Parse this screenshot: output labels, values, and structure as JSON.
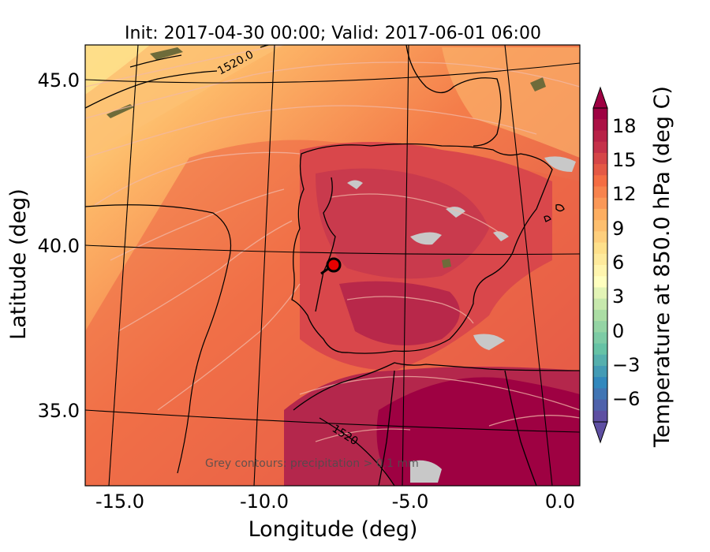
{
  "title": "Init: 2017-04-30 00:00; Valid: 2017-06-01 06:00",
  "axes": {
    "xlabel": "Longitude (deg)",
    "ylabel": "Latitude (deg)",
    "x_ticks": [
      "-15.0",
      "-10.0",
      "-5.0",
      "0.0"
    ],
    "y_ticks": [
      "45.0",
      "40.0",
      "35.0"
    ]
  },
  "colorbar": {
    "label": "Temperature at 850.0 hPa (deg C)",
    "ticks": [
      "18",
      "15",
      "12",
      "9",
      "6",
      "3",
      "0",
      "−3",
      "−6"
    ],
    "range": [
      -8,
      20
    ],
    "extend": "both"
  },
  "contour_labels": [
    "1520.0",
    "1520"
  ],
  "annotation": "Grey contours: precipitation > 0.1 mm",
  "marker": {
    "color": "#e60000",
    "outline": "#000000"
  },
  "colors": {
    "warm_max": "#9e0142",
    "hot": "#c5324a",
    "orange": "#f46d43",
    "light_orange": "#fdae61",
    "yellow": "#fee08b",
    "pale": "#ffffbf",
    "green": "#abdda4",
    "teal": "#66c2a5",
    "blue": "#3288bd",
    "purple": "#5e4fa2",
    "precip_grey": "#c8c8c8"
  }
}
